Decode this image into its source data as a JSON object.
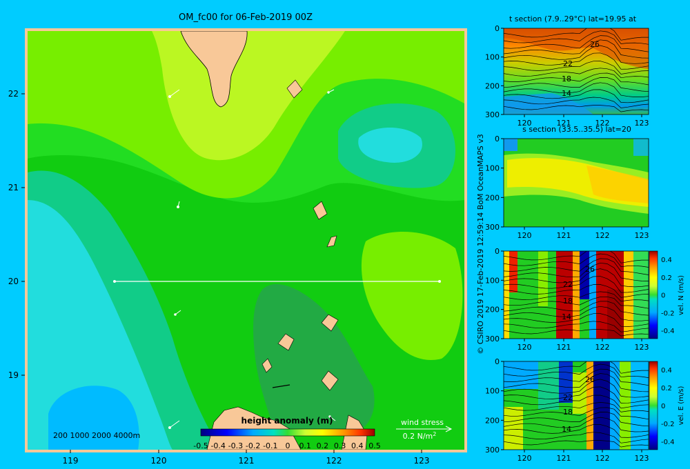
{
  "main_map": {
    "title": "OM_fc00 for 06-Feb-2019 00Z",
    "x_ticks": [
      "119",
      "120",
      "121",
      "122",
      "123"
    ],
    "y_ticks": [
      "22",
      "21",
      "20",
      "19"
    ],
    "xlim": [
      118.5,
      123.5
    ],
    "ylim": [
      18.3,
      22.7
    ],
    "depth_legend": "200  1000  2000  4000m",
    "colorbar_title": "height anomaly (m)",
    "colorbar_ticks": [
      "-0.5",
      "-0.4",
      "-0.3",
      "-0.2",
      "-0.1",
      "0",
      "0.1",
      "0.2",
      "0.3",
      "0.4",
      "0.5"
    ],
    "wind_label": "wind stress",
    "wind_scale": "0.2 N/m",
    "wind_scale_exp": "2",
    "section_line": {
      "lat": 20,
      "lon_start": 119.5,
      "lon_end": 123.2
    }
  },
  "credit": "© CSIRO 2019   17-Feb-2019 12:59:14 BoM OceanMAPS v3",
  "panels": [
    {
      "title": "t section (7.9..29°C) lat=19.95 at",
      "x_ticks": [
        "120",
        "121",
        "122",
        "123"
      ],
      "y_ticks": [
        "0",
        "100",
        "200",
        "300"
      ],
      "contour_labels": [
        "26",
        "22",
        "18",
        "14"
      ]
    },
    {
      "title": "s section (33.5..35.5) lat=20",
      "x_ticks": [
        "120",
        "121",
        "122",
        "123"
      ],
      "y_ticks": [
        "0",
        "100",
        "200",
        "300"
      ]
    },
    {
      "title": "",
      "x_ticks": [
        "120",
        "121",
        "122",
        "123"
      ],
      "y_ticks": [
        "0",
        "100",
        "200",
        "300"
      ],
      "contour_labels": [
        "26",
        "22",
        "18",
        "14"
      ],
      "colorbar_ticks": [
        "0.4",
        "0.2",
        "0",
        "-0.2",
        "-0.4"
      ],
      "colorbar_label": "vel. N (m/s)"
    },
    {
      "title": "",
      "x_ticks": [
        "120",
        "121",
        "122",
        "123"
      ],
      "y_ticks": [
        "0",
        "100",
        "200",
        "300"
      ],
      "contour_labels": [
        "26",
        "22",
        "18",
        "14"
      ],
      "colorbar_ticks": [
        "0.4",
        "0.2",
        "0",
        "-0.2",
        "-0.4"
      ],
      "colorbar_label": "vel. E (m/s)"
    }
  ],
  "chart_data": [
    {
      "type": "heatmap",
      "title": "OM_fc00 for 06-Feb-2019 00Z",
      "variable": "height anomaly (m)",
      "xlim": [
        118.5,
        123.5
      ],
      "ylim": [
        18.3,
        22.7
      ],
      "colorbar_range": [
        -0.5,
        0.5
      ]
    },
    {
      "type": "heatmap",
      "title": "t section (7.9..29°C) lat=19.95 at",
      "xlim": [
        119.5,
        123.2
      ],
      "ylim": [
        300,
        0
      ],
      "contours": [
        26,
        22,
        18,
        14
      ]
    },
    {
      "type": "heatmap",
      "title": "s section (33.5..35.5) lat=20",
      "xlim": [
        119.5,
        123.2
      ],
      "ylim": [
        300,
        0
      ]
    },
    {
      "type": "heatmap",
      "variable": "vel. N (m/s)",
      "xlim": [
        119.5,
        123.2
      ],
      "ylim": [
        300,
        0
      ],
      "colorbar_range": [
        -0.4,
        0.4
      ]
    },
    {
      "type": "heatmap",
      "variable": "vel. E (m/s)",
      "xlim": [
        119.5,
        123.2
      ],
      "ylim": [
        300,
        0
      ],
      "colorbar_range": [
        -0.4,
        0.4
      ]
    }
  ]
}
